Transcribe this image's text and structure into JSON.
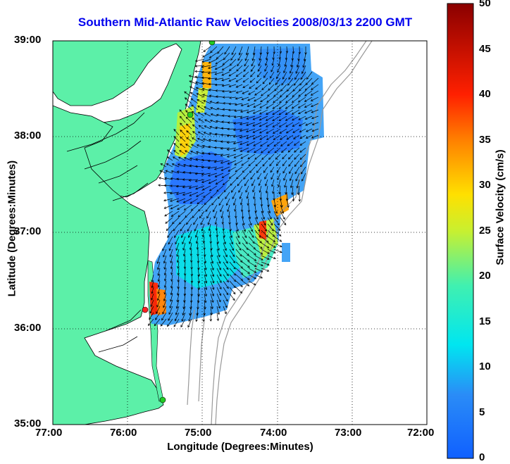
{
  "map": {
    "title": "Southern Mid-Atlantic Raw Velocities 2008/03/13 2200 GMT",
    "xlabel": "Longitude (Degrees:Minutes)",
    "ylabel": "Latitude (Degrees:Minutes)",
    "lon_ticks": [
      "77:00",
      "76:00",
      "75:00",
      "74:00",
      "73:00",
      "72:00"
    ],
    "lat_ticks": [
      "39:00",
      "38:00",
      "37:00",
      "36:00",
      "35:00"
    ],
    "lon_range": [
      -77,
      -72
    ],
    "lat_range": [
      35,
      39
    ],
    "grid": true,
    "land_color": "#5cf0a8",
    "station_colors": {
      "active": "#22cc22",
      "highlight": "#ff2222"
    }
  },
  "colorbar": {
    "label": "Surface Velocity (cm/s)",
    "ticks": [
      "50",
      "45",
      "40",
      "35",
      "30",
      "25",
      "20",
      "15",
      "10",
      "5",
      "0"
    ],
    "range": [
      0,
      50
    ],
    "colormap": "jet"
  }
}
